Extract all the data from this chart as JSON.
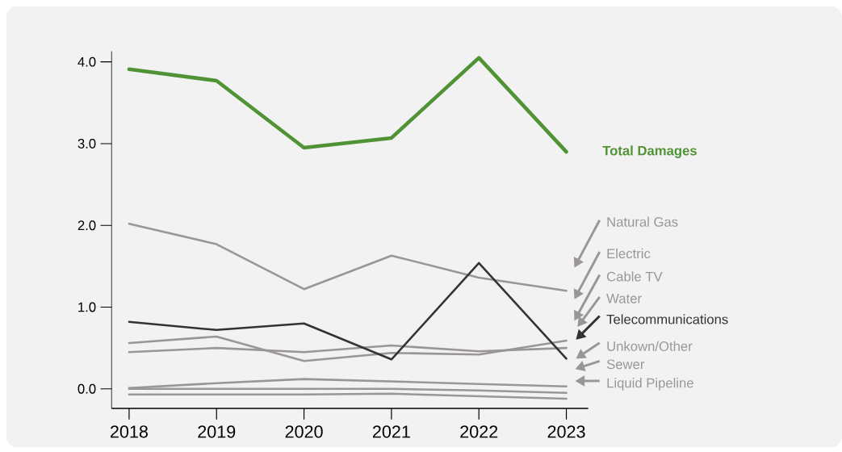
{
  "chart_data": {
    "type": "line",
    "legend": "right",
    "x": [
      2018,
      2019,
      2020,
      2021,
      2022,
      2023
    ],
    "xlim": [
      2017.8,
      2023.25
    ],
    "xticks": [
      2018,
      2019,
      2020,
      2021,
      2022,
      2023
    ],
    "ylim": [
      -0.24,
      4.13
    ],
    "yticks": [
      {
        "value": 0,
        "label": "0.0"
      },
      {
        "value": 1,
        "label": "1.0"
      },
      {
        "value": 2,
        "label": "2.0"
      },
      {
        "value": 3,
        "label": "3.0"
      },
      {
        "value": 4,
        "label": "4.0"
      }
    ],
    "series": [
      {
        "name": "Total Damages",
        "color": "#4f9335",
        "values": [
          3.91,
          3.77,
          2.95,
          3.07,
          4.05,
          2.9
        ]
      },
      {
        "name": "Natural Gas",
        "color": "#9a9696",
        "values": [
          2.02,
          1.77,
          1.22,
          1.63,
          1.36,
          1.2
        ]
      },
      {
        "name": "Electric",
        "color": "#9a9696",
        "values": [
          0.56,
          0.64,
          0.34,
          0.44,
          0.42,
          0.59
        ]
      },
      {
        "name": "Cable TV",
        "color": "#9a9696",
        "values": [
          0.45,
          0.5,
          0.45,
          0.53,
          0.46,
          0.5
        ]
      },
      {
        "name": "Water",
        "color": "#9a9696",
        "values": [
          null,
          null,
          null,
          null,
          null,
          null
        ]
      },
      {
        "name": "Telecommunications",
        "color": "#333333",
        "values": [
          0.82,
          0.72,
          0.8,
          0.36,
          1.54,
          0.37
        ]
      },
      {
        "name": "Unkown/Other",
        "color": "#9a9696",
        "values": [
          0.01,
          0.07,
          0.12,
          0.09,
          0.06,
          0.03
        ]
      },
      {
        "name": "Sewer",
        "color": "#9a9696",
        "values": [
          0.0,
          0.0,
          0.0,
          0.0,
          -0.02,
          -0.05
        ]
      },
      {
        "name": "Liquid Pipeline",
        "color": "#9a9696",
        "values": [
          -0.07,
          -0.07,
          -0.07,
          -0.06,
          -0.09,
          -0.12
        ]
      }
    ]
  }
}
